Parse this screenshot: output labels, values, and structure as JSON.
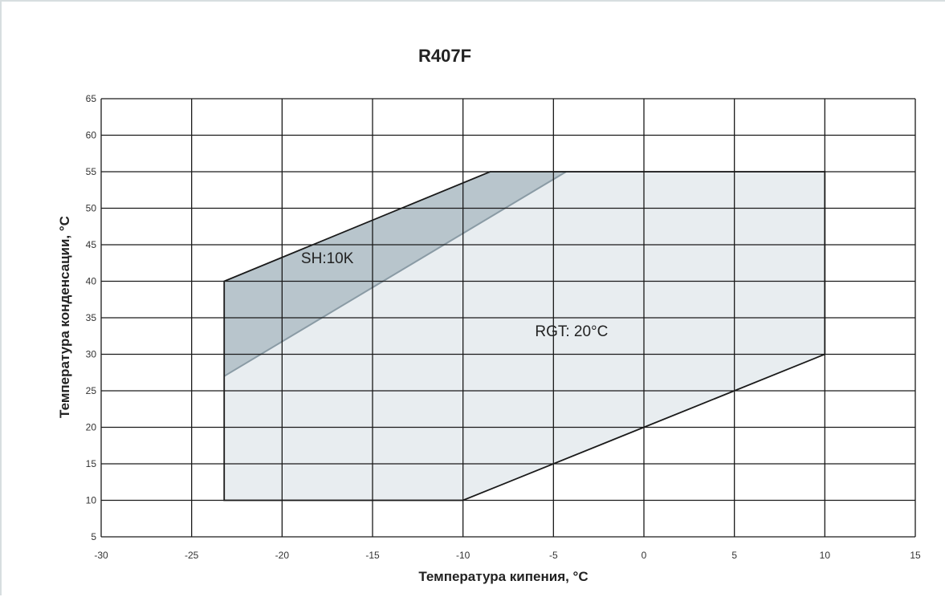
{
  "chart_data": {
    "type": "area",
    "title": "R407F",
    "xlabel": "Температура кипения, °C",
    "ylabel": "Температура конденсации, °C",
    "xlim": [
      -30,
      15
    ],
    "ylim": [
      5,
      65
    ],
    "x_ticks": [
      -30,
      -25,
      -20,
      -15,
      -10,
      -5,
      0,
      5,
      10,
      15
    ],
    "y_ticks": [
      5,
      10,
      15,
      20,
      25,
      30,
      35,
      40,
      45,
      50,
      55,
      60,
      65
    ],
    "x_tick_labels": [
      "-30",
      "-25",
      "-20",
      "-15",
      "-10",
      "-5",
      "0",
      "5",
      "10",
      "15"
    ],
    "y_tick_labels": [
      "5",
      "10",
      "15",
      "20",
      "25",
      "30",
      "35",
      "40",
      "45",
      "50",
      "55",
      "60",
      "65"
    ],
    "grid": true,
    "regions": [
      {
        "name": "RGT: 20°C",
        "fill": "#e8edf0",
        "stroke": "#1a1a1a",
        "points": [
          [
            -23.2,
            10
          ],
          [
            -10,
            10
          ],
          [
            10,
            30
          ],
          [
            10,
            55
          ],
          [
            -8.5,
            55
          ],
          [
            -23.2,
            40
          ]
        ]
      },
      {
        "name": "SH:10K",
        "fill": "#b8c5cc",
        "stroke": "#1a1a1a",
        "boundary_color": "#8a9ba5",
        "points": [
          [
            -23.2,
            27
          ],
          [
            -4.3,
            55
          ],
          [
            -8.5,
            55
          ],
          [
            -23.2,
            40
          ]
        ]
      }
    ],
    "annotations": [
      {
        "text": "SH:10K",
        "x": -17.5,
        "y": 42.5
      },
      {
        "text": "RGT: 20°C",
        "x": -4,
        "y": 32.5
      }
    ]
  }
}
